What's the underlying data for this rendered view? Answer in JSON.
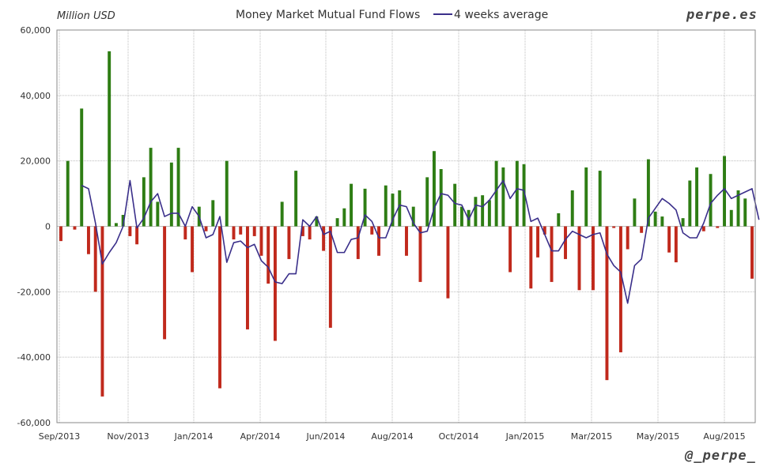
{
  "header": {
    "unit_label": "Million USD",
    "title": "Money Market Mutual Fund Flows",
    "legend_label": "4 weeks average",
    "brand": "perpe.es",
    "twitter": "@_perpe_"
  },
  "colors": {
    "positive_bar": "#2e7d14",
    "negative_bar": "#c0291c",
    "average_line": "#3a2f8a",
    "grid": "#bdbdbd",
    "axis": "#888888"
  },
  "chart_data": {
    "type": "bar",
    "title": "Money Market Mutual Fund Flows",
    "ylabel": "Million USD",
    "ylim": [
      -60000,
      60000
    ],
    "yticks": [
      -60000,
      -40000,
      -20000,
      0,
      20000,
      40000,
      60000
    ],
    "ytick_labels": [
      "-60,000",
      "-40,000",
      "-20,000",
      "0",
      "20,000",
      "40,000",
      "60,000"
    ],
    "x_tick_labels": [
      "Sep/2013",
      "Nov/2013",
      "Jan/2014",
      "Apr/2014",
      "Jun/2014",
      "Aug/2014",
      "Oct/2014",
      "Jan/2015",
      "Mar/2015",
      "May/2015",
      "Aug/2015"
    ],
    "grid": true,
    "legend_placement": "top",
    "series": [
      {
        "name": "",
        "type": "bar",
        "values": [
          -4500,
          20000,
          -1000,
          36000,
          -8500,
          -20000,
          -52000,
          53500,
          1000,
          3500,
          -3000,
          -5500,
          15000,
          24000,
          7500,
          -34500,
          19500,
          24000,
          -4000,
          -14000,
          6000,
          -1500,
          8000,
          -49500,
          20000,
          -4000,
          -2500,
          -31500,
          -3000,
          -9000,
          -17500,
          -35000,
          7500,
          -10000,
          17000,
          -3000,
          -4000,
          3000,
          -7500,
          -31000,
          2500,
          5500,
          13000,
          -10000,
          11500,
          -2500,
          -9000,
          12500,
          10000,
          11000,
          -9000,
          6000,
          -17000,
          15000,
          23000,
          17500,
          -22000,
          13000,
          6000,
          5000,
          9000,
          9500,
          8000,
          20000,
          18000,
          -14000,
          20000,
          19000,
          -19000,
          -9500,
          -2500,
          -17000,
          4000,
          -10000,
          11000,
          -19500,
          18000,
          -19500,
          17000,
          -47000,
          -500,
          -38500,
          -7000,
          8500,
          -2000,
          20500,
          4500,
          3000,
          -8000,
          -11000,
          2500,
          14000,
          18000,
          -1500,
          16000,
          -500,
          21500,
          5000,
          11000,
          8500,
          -16000
        ],
        "color": "#2e7d14"
      },
      {
        "name": "4 weeks average",
        "type": "line",
        "values": [
          null,
          null,
          null,
          12500,
          11500,
          1000,
          -11500,
          -8000,
          -5000,
          0,
          14000,
          -500,
          2500,
          7500,
          10000,
          3000,
          4000,
          4000,
          0,
          6000,
          3000,
          -3500,
          -2500,
          3000,
          -11000,
          -5000,
          -4500,
          -6500,
          -5500,
          -10500,
          -12500,
          -17000,
          -17500,
          -14500,
          -14500,
          2000,
          0,
          3000,
          -2500,
          -1500,
          -8000,
          -8000,
          -4000,
          -3500,
          3500,
          1500,
          -3500,
          -3500,
          2000,
          6500,
          6000,
          1000,
          -2000,
          -1500,
          5500,
          10000,
          9500,
          7000,
          6500,
          2000,
          6500,
          6000,
          8000,
          11000,
          14000,
          8500,
          11500,
          11000,
          1500,
          2500,
          -2500,
          -7500,
          -7500,
          -4000,
          -1500,
          -2500,
          -3500,
          -2500,
          -2000,
          -8500,
          -12000,
          -14000,
          -23500,
          -12000,
          -10000,
          2500,
          5500,
          8500,
          7000,
          5000,
          -2000,
          -3500,
          -3500,
          1000,
          7000,
          9500,
          11500,
          8500,
          9500,
          10500,
          11500,
          2000
        ],
        "color": "#3a2f8a"
      }
    ]
  }
}
